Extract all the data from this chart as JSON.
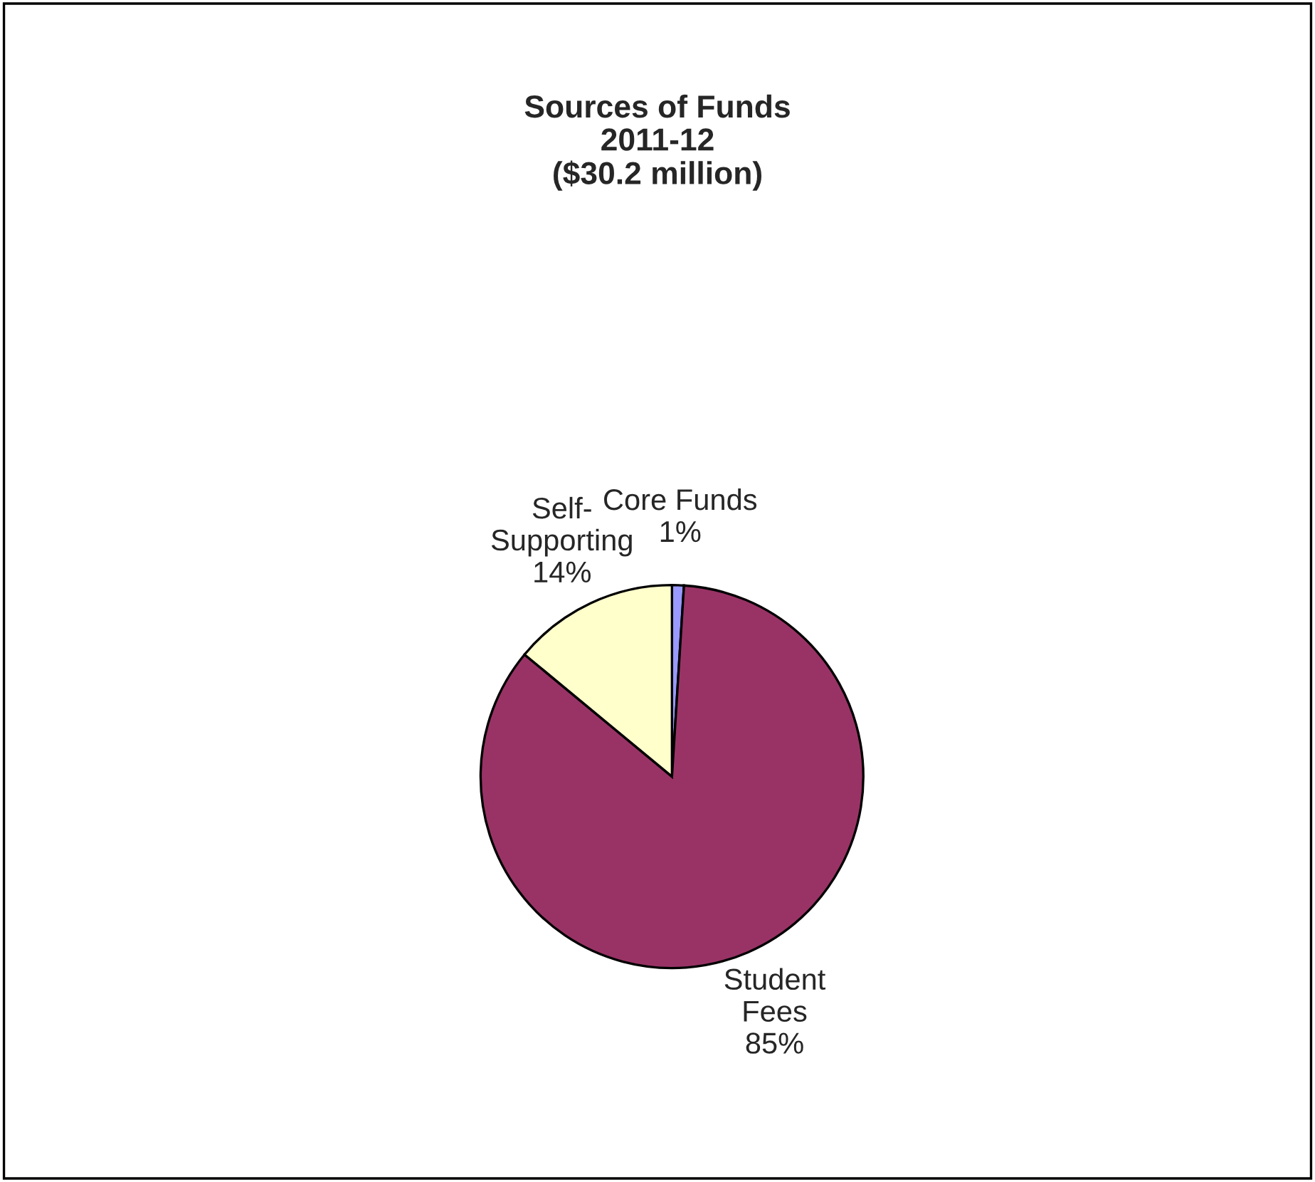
{
  "chart_data": {
    "type": "pie",
    "title": "Sources of Funds\n2011-12\n($30.2 million)",
    "categories": [
      "Core Funds",
      "Student\nFees",
      "Self-\nSupporting"
    ],
    "values": [
      1,
      85,
      14
    ],
    "value_labels": [
      "1%",
      "85%",
      "14%"
    ],
    "colors": [
      "#9999ff",
      "#993366",
      "#ffffcc"
    ],
    "legend": false
  }
}
